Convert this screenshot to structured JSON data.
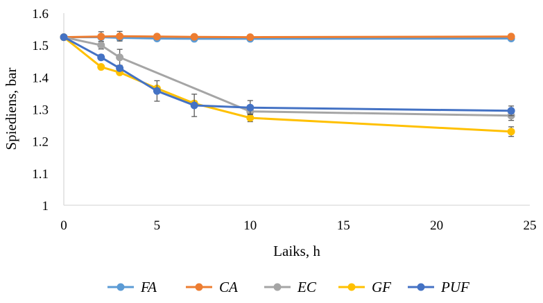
{
  "chart_data": {
    "type": "line",
    "xlabel": "Laiks, h",
    "ylabel": "Spiediens, bar",
    "xlim": [
      0,
      25
    ],
    "ylim": [
      1,
      1.6
    ],
    "xticks": [
      0,
      5,
      10,
      15,
      20,
      25
    ],
    "yticks": [
      1,
      1.1,
      1.2,
      1.3,
      1.4,
      1.5,
      1.6
    ],
    "xtick_labels": [
      "0",
      "5",
      "10",
      "15",
      "20",
      "25"
    ],
    "ytick_labels": [
      "1",
      "1.1",
      "1.2",
      "1.3",
      "1.4",
      "1.5",
      "1.6"
    ],
    "grid": false,
    "legend_position": "bottom",
    "series": [
      {
        "name": "FA",
        "color": "#5b9bd5",
        "x": [
          0,
          2,
          3,
          5,
          7,
          10,
          24
        ],
        "y": [
          1.525,
          1.525,
          1.523,
          1.521,
          1.52,
          1.52,
          1.521
        ],
        "err": [
          0,
          0,
          0,
          0.006,
          0.004,
          0.005,
          0.005
        ]
      },
      {
        "name": "CA",
        "color": "#ed7d31",
        "x": [
          0,
          2,
          3,
          5,
          7,
          10,
          24
        ],
        "y": [
          1.525,
          1.527,
          1.528,
          1.527,
          1.526,
          1.525,
          1.527
        ],
        "err": [
          0,
          0.015,
          0.015,
          0.005,
          0.004,
          0.004,
          0.004
        ]
      },
      {
        "name": "EC",
        "color": "#a5a5a5",
        "x": [
          0,
          2,
          3,
          10,
          24
        ],
        "y": [
          1.525,
          1.5,
          1.462,
          1.293,
          1.28
        ],
        "err": [
          0,
          0.012,
          0.025,
          0.008,
          0.015
        ]
      },
      {
        "name": "GF",
        "color": "#ffc000",
        "x": [
          0,
          2,
          3,
          5,
          7,
          10,
          24
        ],
        "y": [
          1.525,
          1.432,
          1.415,
          1.365,
          1.318,
          1.273,
          1.23
        ],
        "err": [
          0,
          0.005,
          0.005,
          0.005,
          0.008,
          0.012,
          0.015
        ]
      },
      {
        "name": "PUF",
        "color": "#4472c4",
        "x": [
          0,
          2,
          3,
          5,
          7,
          10,
          24
        ],
        "y": [
          1.525,
          1.462,
          1.428,
          1.357,
          1.312,
          1.305,
          1.295
        ],
        "err": [
          0,
          0.008,
          0.008,
          0.032,
          0.035,
          0.022,
          0.015
        ]
      }
    ]
  }
}
